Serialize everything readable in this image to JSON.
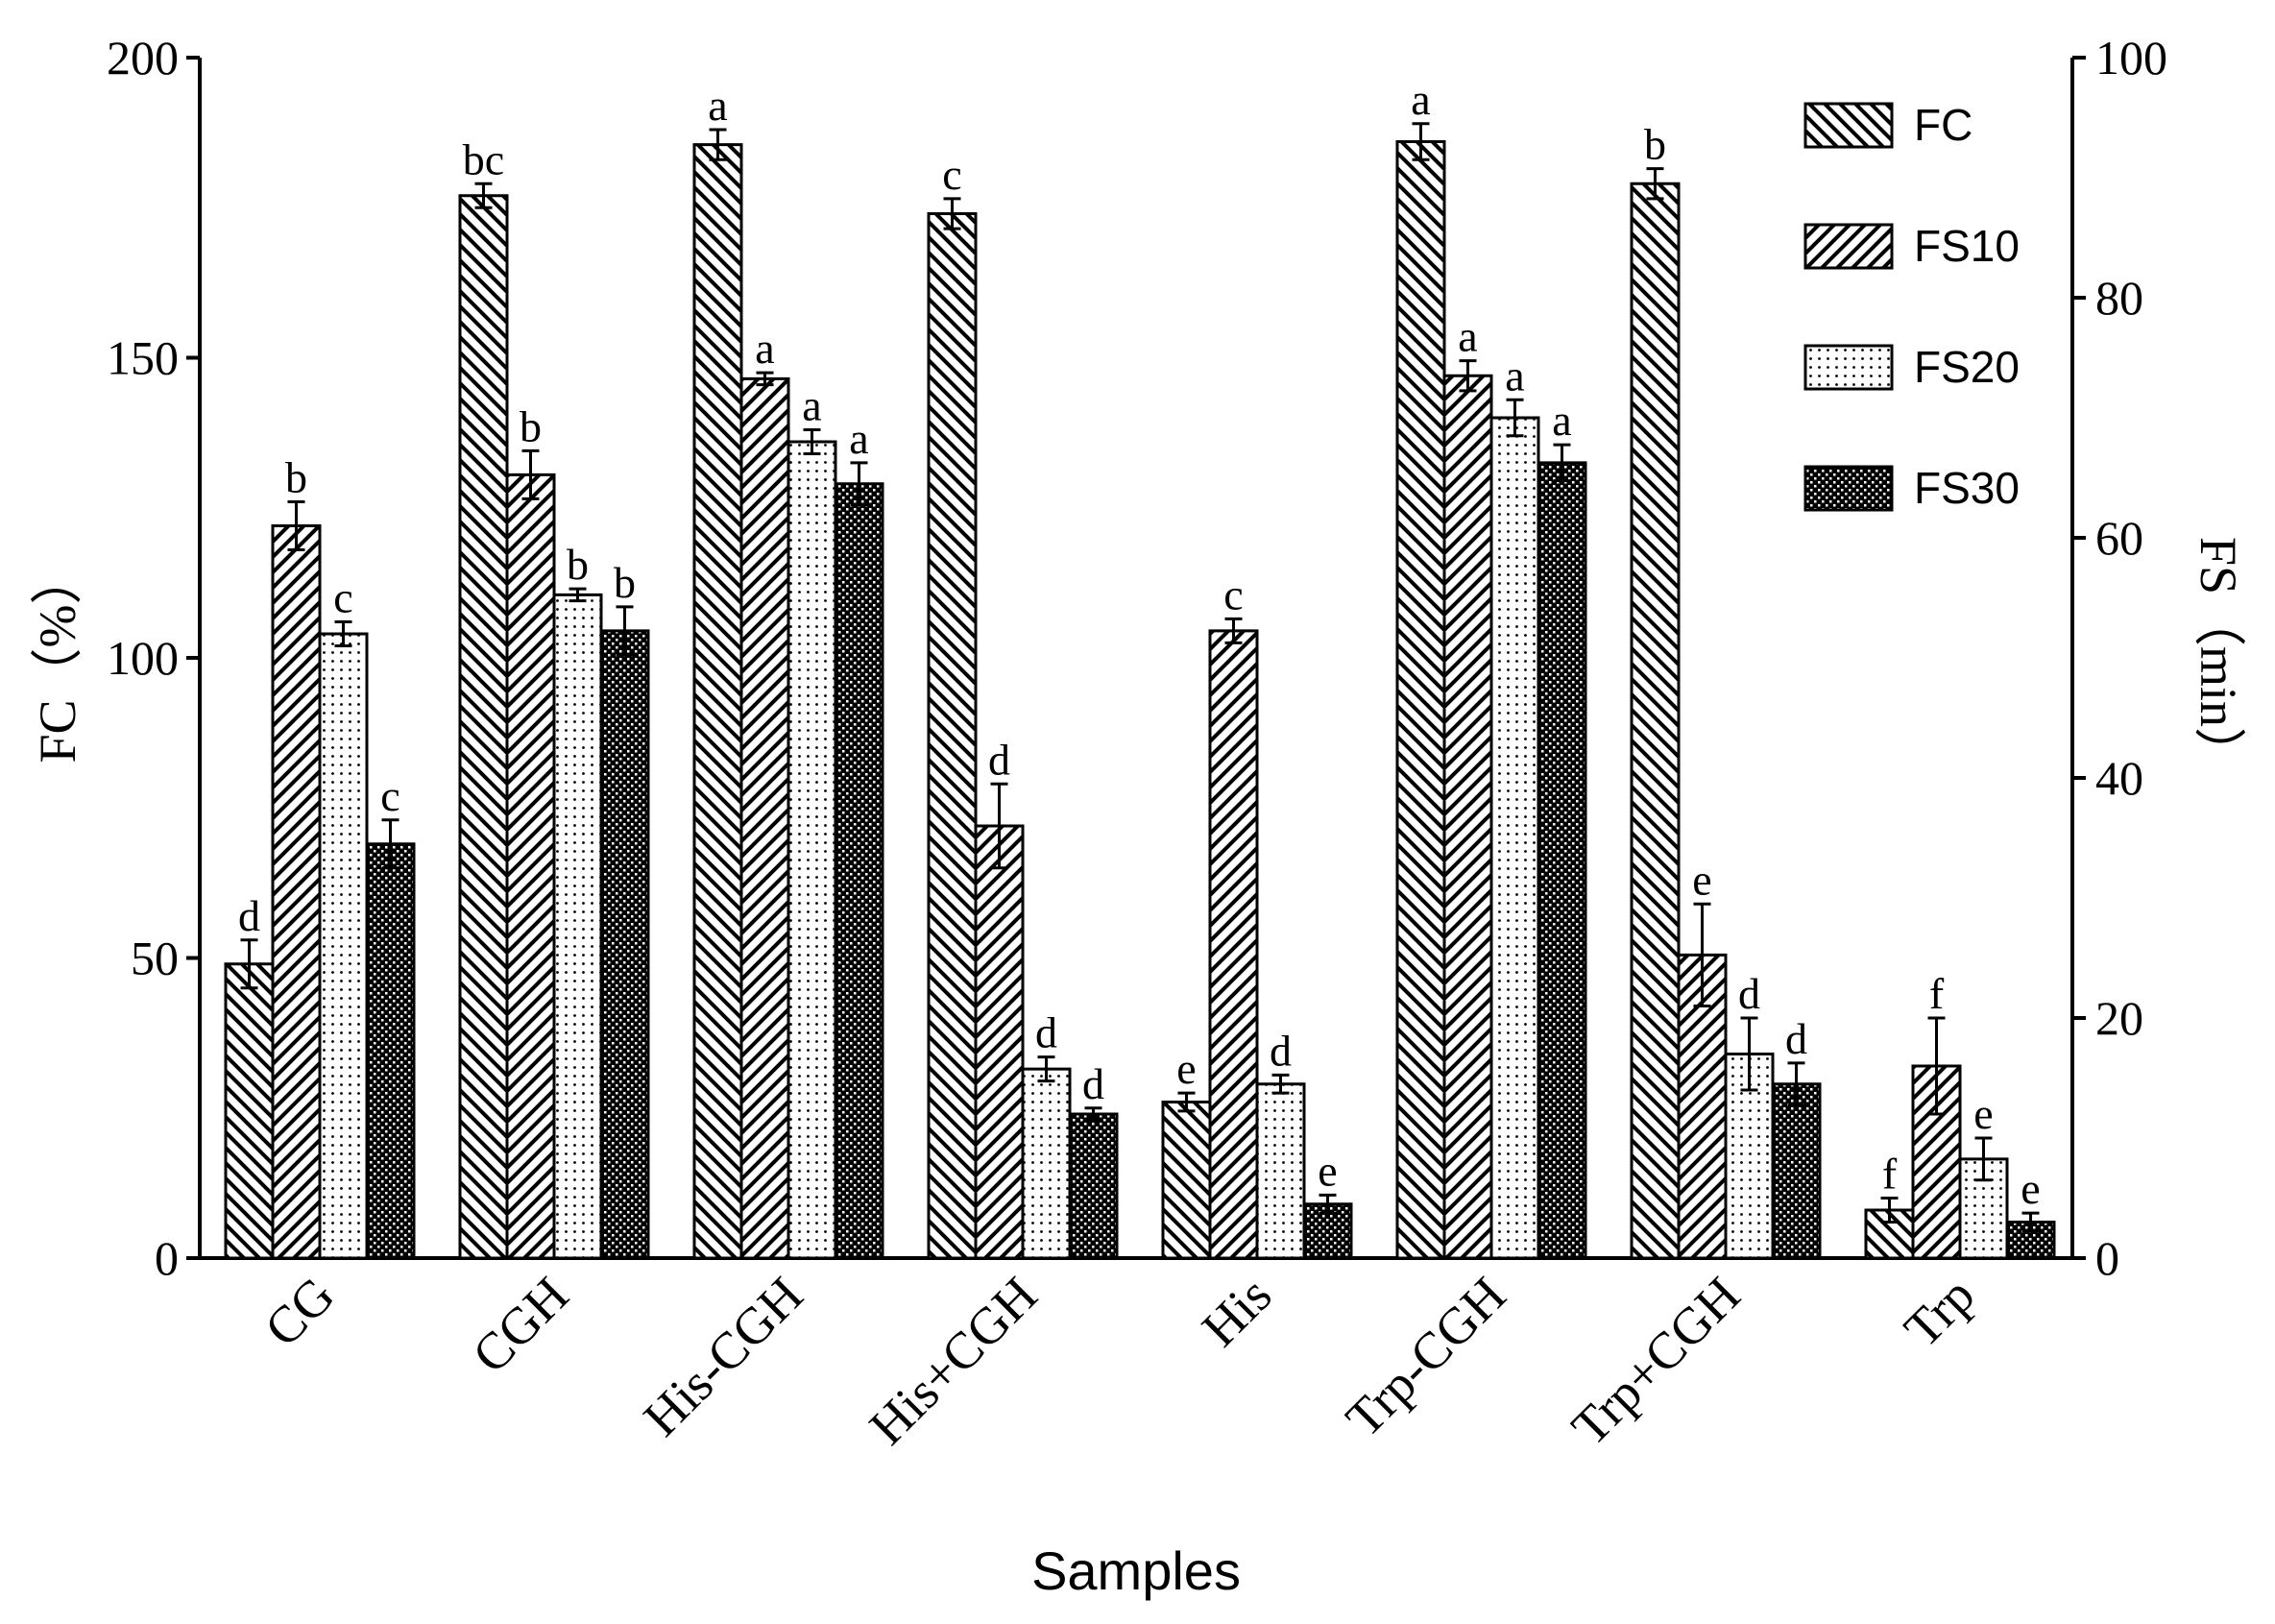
{
  "chart_data": {
    "type": "bar",
    "categories": [
      "CG",
      "CGH",
      "His-CGH",
      "His+CGH",
      "His",
      "Trp-CGH",
      "Trp+CGH",
      "Trp"
    ],
    "xlabel": "Samples",
    "ylabel_left": "FC（%）",
    "ylabel_right": "FS（min）",
    "ylim_left": [
      0,
      200
    ],
    "ylim_right": [
      0,
      100
    ],
    "yticks_left": [
      "0",
      "50",
      "100",
      "150",
      "200"
    ],
    "yticks_right": [
      "0",
      "20",
      "40",
      "60",
      "80",
      "100"
    ],
    "legend_position": "top-right",
    "series": [
      {
        "name": "FC",
        "axis": "left",
        "pattern": "back-diagonal",
        "values": [
          49,
          177,
          185.5,
          174,
          26,
          186,
          179,
          8
        ],
        "errors": [
          4,
          2,
          2.5,
          2.5,
          1.5,
          3,
          2.5,
          2
        ],
        "letters": [
          "d",
          "bc",
          "a",
          "c",
          "e",
          "a",
          "b",
          "f"
        ]
      },
      {
        "name": "FS10",
        "axis": "left",
        "pattern": "forward-diagonal",
        "values": [
          122,
          130.5,
          146.5,
          72,
          104.5,
          147,
          50.5,
          32
        ],
        "errors": [
          4,
          4,
          1,
          7,
          2,
          2.5,
          8.5,
          8
        ],
        "letters": [
          "b",
          "b",
          "a",
          "d",
          "c",
          "a",
          "e",
          "f"
        ]
      },
      {
        "name": "FS20",
        "axis": "left",
        "pattern": "dots",
        "values": [
          104,
          110.5,
          136,
          31.5,
          29,
          140,
          34,
          16.5
        ],
        "errors": [
          2,
          1,
          2,
          2,
          1.5,
          3,
          6,
          3.5
        ],
        "letters": [
          "c",
          "b",
          "a",
          "d",
          "d",
          "a",
          "d",
          "e"
        ]
      },
      {
        "name": "FS30",
        "axis": "left",
        "pattern": "checker",
        "values": [
          69,
          104.5,
          129,
          24,
          9,
          132.5,
          29,
          6
        ],
        "errors": [
          4,
          4,
          3.5,
          1,
          1.5,
          3,
          3.5,
          1.5
        ],
        "letters": [
          "c",
          "b",
          "a",
          "d",
          "e",
          "a",
          "d",
          "e"
        ]
      }
    ]
  }
}
